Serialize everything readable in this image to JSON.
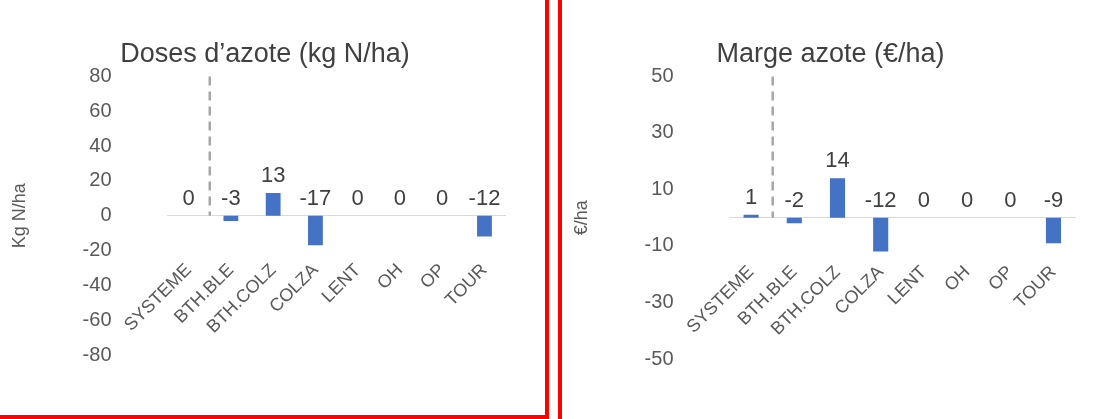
{
  "chart_data": [
    {
      "type": "bar",
      "title": "Doses d’azote (kg N/ha)",
      "ylabel": "Kg N/ha",
      "categories": [
        "SYSTEME",
        "BTH.BLE",
        "BTH.COLZ",
        "COLZA",
        "LENT",
        "OH",
        "OP",
        "TOUR"
      ],
      "values": [
        0,
        -3,
        13,
        -17,
        0,
        0,
        0,
        -12
      ],
      "color": "#4472c4",
      "ylim": [
        -80,
        80
      ],
      "yticks": [
        -80,
        -60,
        -40,
        -20,
        0,
        20,
        40,
        60,
        80
      ],
      "data_labels": true
    },
    {
      "type": "bar",
      "title": "Marge azote (€/ha)",
      "ylabel": "€/ha",
      "categories": [
        "SYSTEME",
        "BTH.BLE",
        "BTH.COLZ",
        "COLZA",
        "LENT",
        "OH",
        "OP",
        "TOUR"
      ],
      "values": [
        1,
        -2,
        14,
        -12,
        0,
        0,
        0,
        -9
      ],
      "color": "#4472c4",
      "ylim": [
        -50,
        50
      ],
      "yticks": [
        -50,
        -30,
        -10,
        10,
        30,
        50
      ],
      "data_labels": true
    }
  ]
}
